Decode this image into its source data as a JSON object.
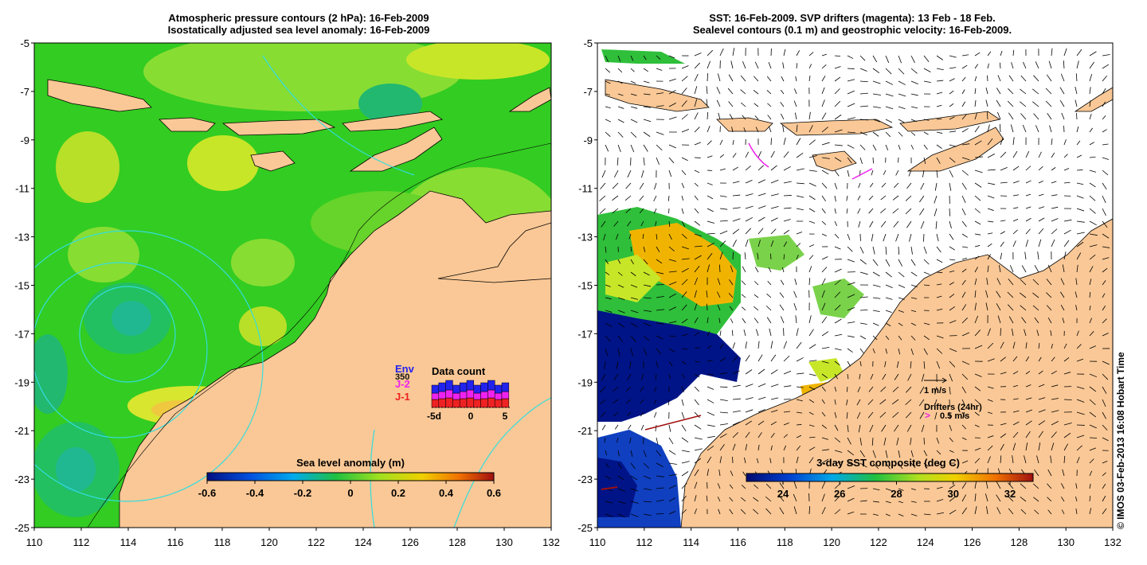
{
  "left_panel": {
    "title_line1": "Atmospheric pressure contours (2 hPa): 16-Feb-2009",
    "title_line2": "Isostatically adjusted sea level anomaly: 16-Feb-2009",
    "y_ticks": [
      "-5",
      "-7",
      "-9",
      "-11",
      "-13",
      "-15",
      "-17",
      "-19",
      "-21",
      "-23",
      "-25"
    ],
    "x_ticks": [
      "110",
      "112",
      "114",
      "116",
      "118",
      "120",
      "122",
      "124",
      "126",
      "128",
      "130",
      "132"
    ],
    "colorbar": {
      "title": "Sea level anomaly (m)",
      "ticks": [
        "-0.6",
        "-0.4",
        "-0.2",
        "0",
        "0.2",
        "0.4",
        "0.6"
      ]
    },
    "data_count": {
      "title": "Data count",
      "missions": [
        {
          "label": "Env",
          "color": "#2222ee"
        },
        {
          "label": "J-2",
          "color": "#ee22ee"
        },
        {
          "label": "J-1",
          "color": "#ee2222"
        }
      ],
      "hidden_label": "350",
      "axis": [
        "-5d",
        "0",
        "5"
      ]
    }
  },
  "right_panel": {
    "title_line1": "SST: 16-Feb-2009. SVP drifters (magenta): 13 Feb - 18 Feb.",
    "title_line2": "Sealevel contours (0.1 m) and geostrophic velocity: 16-Feb-2009.",
    "y_ticks": [
      "-5",
      "-7",
      "-9",
      "-11",
      "-13",
      "-15",
      "-17",
      "-19",
      "-21",
      "-23",
      "-25"
    ],
    "x_ticks": [
      "110",
      "112",
      "114",
      "116",
      "118",
      "120",
      "122",
      "124",
      "126",
      "128",
      "130",
      "132"
    ],
    "colorbar": {
      "title": "3-day SST composite (deg C)",
      "ticks": [
        "24",
        "26",
        "28",
        "30",
        "32"
      ]
    },
    "velocity_scale": "1 m/s",
    "drifters_label": "Drifters (24hr)",
    "drifters_scale": "0.5 m/s"
  },
  "copyright": "© IMOS 03-Feb-2013 16:08 Hobart Time",
  "colors": {
    "land": "#fac896",
    "ocean_green": "#33cc22",
    "ocean_light_green": "#7fdd33",
    "ocean_yellow": "#c8e628",
    "ocean_teal": "#20b87a",
    "contour_cyan": "#33dddd",
    "sst_blue": "#001488",
    "sst_orange": "#f0b000"
  }
}
